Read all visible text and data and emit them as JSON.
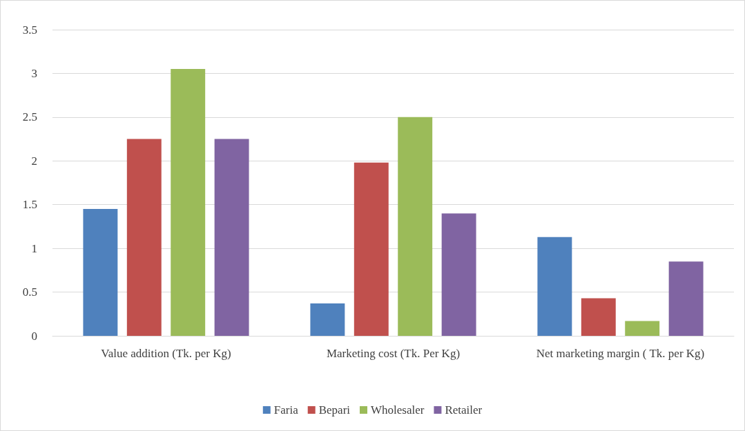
{
  "chart_data": {
    "type": "bar",
    "categories": [
      "Value addition (Tk. per Kg)",
      "Marketing cost (Tk. Per Kg)",
      "Net marketing margin ( Tk. per Kg)"
    ],
    "series": [
      {
        "name": "Faria",
        "color": "#4f81bd",
        "values": [
          1.45,
          0.37,
          1.13
        ]
      },
      {
        "name": "Bepari",
        "color": "#c0504d",
        "values": [
          2.25,
          1.98,
          0.43
        ]
      },
      {
        "name": "Wholesaler",
        "color": "#9bbb59",
        "values": [
          3.05,
          2.5,
          0.17
        ]
      },
      {
        "name": "Retailer",
        "color": "#8064a2",
        "values": [
          2.25,
          1.4,
          0.85
        ]
      }
    ],
    "ylim": [
      0,
      3.5
    ],
    "yticks": [
      0,
      0.5,
      1,
      1.5,
      2,
      2.5,
      3,
      3.5
    ],
    "grid": "y",
    "legend": "bottom"
  }
}
